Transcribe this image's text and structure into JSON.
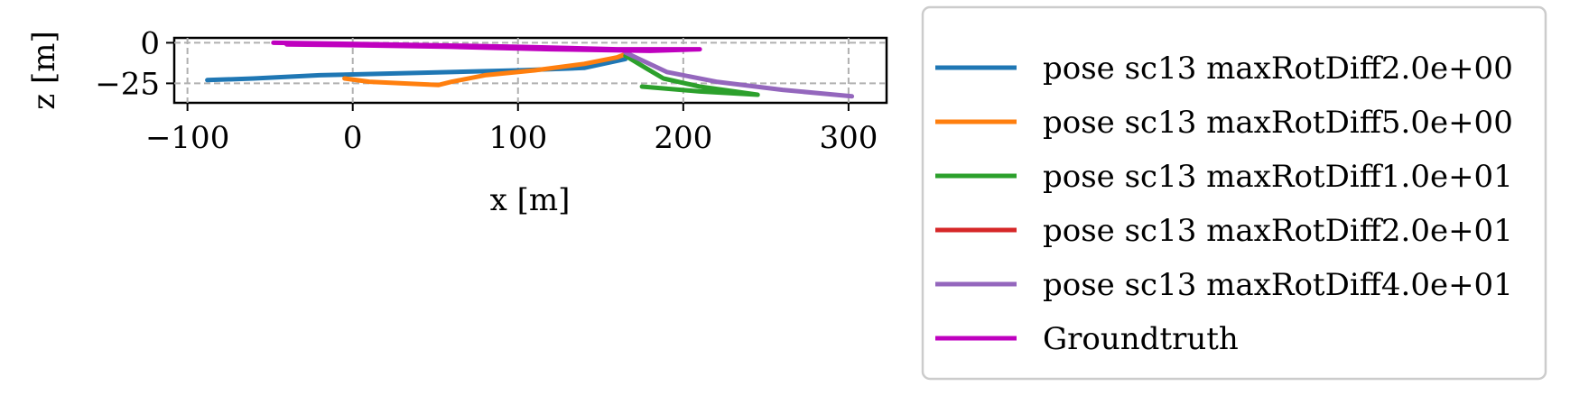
{
  "chart_data": {
    "type": "line",
    "xlabel": "x [m]",
    "ylabel": "z [m]",
    "xlim": [
      -108,
      323
    ],
    "ylim": [
      -37,
      3
    ],
    "xticks": [
      -100,
      0,
      100,
      200,
      300
    ],
    "xtick_labels": [
      "−100",
      "0",
      "100",
      "200",
      "300"
    ],
    "yticks": [
      0,
      -25
    ],
    "ytick_labels": [
      "0",
      "−25"
    ],
    "grid": true,
    "legend_position": "right, outside plot",
    "series": [
      {
        "name": "pose sc13 maxRotDiff2.0e+00",
        "color": "#1f77b4",
        "points": [
          [
            -88,
            -23
          ],
          [
            -60,
            -22
          ],
          [
            -20,
            -20
          ],
          [
            40,
            -18.5
          ],
          [
            100,
            -17
          ],
          [
            140,
            -15.5
          ],
          [
            165,
            -10
          ]
        ]
      },
      {
        "name": "pose sc13 maxRotDiff5.0e+00",
        "color": "#ff7f0e",
        "points": [
          [
            -5,
            -22
          ],
          [
            10,
            -24
          ],
          [
            30,
            -25
          ],
          [
            52,
            -26
          ],
          [
            60,
            -24
          ],
          [
            80,
            -20
          ],
          [
            110,
            -17
          ],
          [
            140,
            -13
          ],
          [
            160,
            -9
          ],
          [
            165,
            -7
          ]
        ]
      },
      {
        "name": "pose sc13 maxRotDiff1.0e+01",
        "color": "#2ca02c",
        "points": [
          [
            165,
            -8
          ],
          [
            178,
            -16
          ],
          [
            188,
            -22
          ],
          [
            210,
            -27
          ],
          [
            245,
            -32
          ],
          [
            210,
            -30
          ],
          [
            175,
            -27
          ]
        ]
      },
      {
        "name": "pose sc13 maxRotDiff2.0e+01",
        "color": "#d62728",
        "points": []
      },
      {
        "name": "pose sc13 maxRotDiff4.0e+01",
        "color": "#9467bd",
        "points": [
          [
            165,
            -6
          ],
          [
            190,
            -18
          ],
          [
            220,
            -24
          ],
          [
            260,
            -29
          ],
          [
            302,
            -33
          ]
        ]
      },
      {
        "name": "Groundtruth",
        "color": "#bf00bf",
        "points": [
          [
            -48,
            0
          ],
          [
            20,
            -1
          ],
          [
            100,
            -2.5
          ],
          [
            160,
            -4
          ],
          [
            210,
            -4
          ],
          [
            180,
            -5
          ],
          [
            120,
            -4
          ],
          [
            60,
            -2.5
          ],
          [
            0,
            -1.5
          ],
          [
            -40,
            -1
          ]
        ]
      }
    ]
  }
}
